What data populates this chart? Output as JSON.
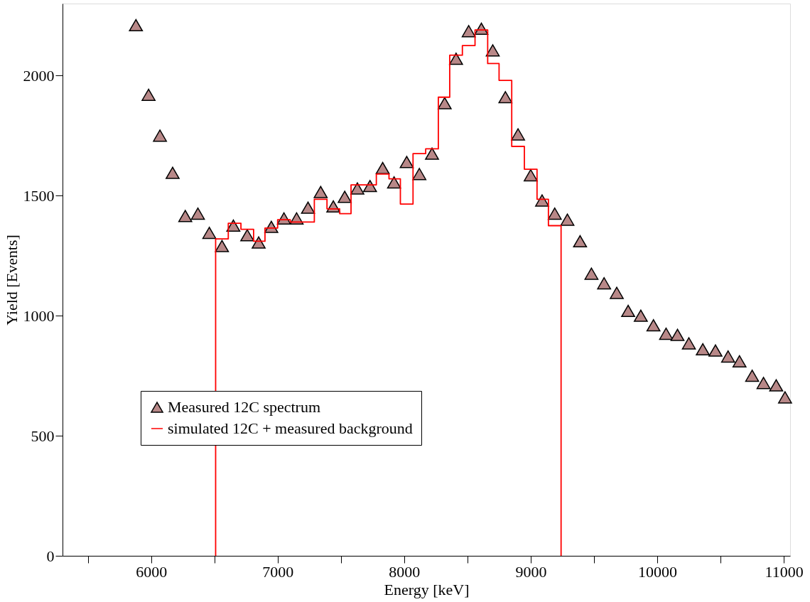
{
  "chart_data": {
    "type": "scatter",
    "xlabel": "Energy [keV]",
    "ylabel": "Yield [Events]",
    "xlim": [
      5300,
      11050
    ],
    "ylim": [
      0,
      2300
    ],
    "xticks": [
      {
        "value": 5500,
        "label": null
      },
      6000,
      {
        "value": 6500,
        "label": null
      },
      7000,
      {
        "value": 7500,
        "label": null
      },
      8000,
      {
        "value": 8500,
        "label": null
      },
      9000,
      {
        "value": 9500,
        "label": null
      },
      10000,
      {
        "value": 10500,
        "label": null
      },
      11000
    ],
    "yticks": [
      0,
      500,
      1000,
      1500,
      2000
    ],
    "grid": false,
    "legend": "bottom left",
    "series": [
      {
        "name": "Measured 12C spectrum",
        "marker": "triangle",
        "color": "#b88888",
        "x": [
          5880,
          5980,
          6070,
          6170,
          6270,
          6370,
          6460,
          6560,
          6650,
          6760,
          6850,
          6950,
          7050,
          7150,
          7240,
          7340,
          7440,
          7530,
          7630,
          7730,
          7830,
          7920,
          8020,
          8120,
          8220,
          8320,
          8410,
          8510,
          8610,
          8700,
          8800,
          8900,
          9000,
          9090,
          9190,
          9290,
          9390,
          9480,
          9580,
          9680,
          9770,
          9870,
          9970,
          10070,
          10160,
          10250,
          10360,
          10460,
          10560,
          10650,
          10750,
          10840,
          10940,
          11010
        ],
        "values": [
          2210,
          1920,
          1750,
          1595,
          1415,
          1425,
          1345,
          1290,
          1375,
          1335,
          1305,
          1370,
          1405,
          1405,
          1450,
          1515,
          1455,
          1495,
          1530,
          1540,
          1615,
          1555,
          1640,
          1590,
          1675,
          1885,
          2070,
          2185,
          2195,
          2105,
          1910,
          1755,
          1585,
          1480,
          1425,
          1400,
          1310,
          1175,
          1135,
          1095,
          1020,
          1000,
          960,
          925,
          920,
          885,
          860,
          855,
          830,
          810,
          750,
          720,
          710,
          660
        ]
      },
      {
        "name": "simulated 12C + measured background",
        "type": "step",
        "marker": "none",
        "color": "#ff0000",
        "x": [
          6510,
          6510,
          6610,
          6710,
          6810,
          6900,
          7000,
          7100,
          7290,
          7390,
          7490,
          7580,
          7780,
          7880,
          7970,
          8070,
          8170,
          8270,
          8360,
          8460,
          8560,
          8660,
          8750,
          8850,
          8950,
          9050,
          9140,
          9240
        ],
        "values": [
          0,
          1320,
          1385,
          1360,
          1310,
          1365,
          1400,
          1390,
          1485,
          1445,
          1425,
          1545,
          1590,
          1570,
          1465,
          1675,
          1695,
          1910,
          2085,
          2125,
          2190,
          2050,
          1980,
          1705,
          1610,
          1485,
          1375,
          0
        ]
      }
    ]
  }
}
